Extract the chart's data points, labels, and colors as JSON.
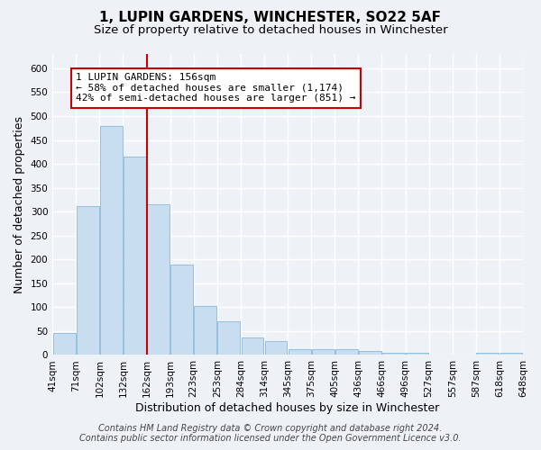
{
  "title": "1, LUPIN GARDENS, WINCHESTER, SO22 5AF",
  "subtitle": "Size of property relative to detached houses in Winchester",
  "xlabel": "Distribution of detached houses by size in Winchester",
  "ylabel": "Number of detached properties",
  "bar_color": "#c9ddf0",
  "bar_edge_color": "#7aafd4",
  "bar_heights": [
    47,
    312,
    480,
    415,
    315,
    190,
    103,
    70,
    37,
    30,
    13,
    12,
    13,
    8,
    5,
    4,
    1,
    0,
    5,
    5
  ],
  "bin_labels": [
    "41sqm",
    "71sqm",
    "102sqm",
    "132sqm",
    "162sqm",
    "193sqm",
    "223sqm",
    "253sqm",
    "284sqm",
    "314sqm",
    "345sqm",
    "375sqm",
    "405sqm",
    "436sqm",
    "466sqm",
    "496sqm",
    "527sqm",
    "557sqm",
    "587sqm",
    "618sqm",
    "648sqm"
  ],
  "ylim": [
    0,
    630
  ],
  "yticks": [
    0,
    50,
    100,
    150,
    200,
    250,
    300,
    350,
    400,
    450,
    500,
    550,
    600
  ],
  "property_line_bin": 4,
  "annotation_title": "1 LUPIN GARDENS: 156sqm",
  "annotation_line1": "← 58% of detached houses are smaller (1,174)",
  "annotation_line2": "42% of semi-detached houses are larger (851) →",
  "annotation_box_color": "#ffffff",
  "annotation_box_edge_color": "#cc0000",
  "red_line_color": "#cc0000",
  "footer1": "Contains HM Land Registry data © Crown copyright and database right 2024.",
  "footer2": "Contains public sector information licensed under the Open Government Licence v3.0.",
  "background_color": "#eef2f7",
  "plot_background": "#eef2f7",
  "grid_color": "#ffffff",
  "title_fontsize": 11,
  "subtitle_fontsize": 9.5,
  "axis_label_fontsize": 9,
  "tick_fontsize": 7.5,
  "annotation_fontsize": 8,
  "footer_fontsize": 7
}
